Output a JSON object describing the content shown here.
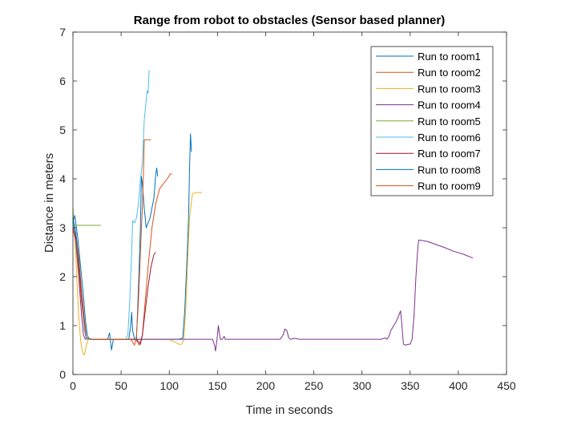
{
  "chart_data": {
    "type": "line",
    "title": "Range from robot to obstacles (Sensor based planner)",
    "xlabel": "Time in seconds",
    "ylabel": "Distance in meters",
    "xlim": [
      0,
      450
    ],
    "ylim": [
      0,
      7
    ],
    "xticks": [
      0,
      50,
      100,
      150,
      200,
      250,
      300,
      350,
      400,
      450
    ],
    "yticks": [
      0,
      1,
      2,
      3,
      4,
      5,
      6,
      7
    ],
    "grid": false,
    "legend_position": "top-right",
    "series": [
      {
        "name": "Run to room1",
        "color": "#0072BD",
        "points": [
          [
            0,
            3.1
          ],
          [
            2,
            3.25
          ],
          [
            5,
            2.8
          ],
          [
            8,
            2.2
          ],
          [
            11,
            1.6
          ],
          [
            13,
            1.1
          ],
          [
            15,
            0.8
          ],
          [
            17,
            0.72
          ],
          [
            25,
            0.72
          ],
          [
            35,
            0.72
          ],
          [
            45,
            0.72
          ],
          [
            55,
            0.72
          ],
          [
            62,
            0.72
          ],
          [
            68,
            0.72
          ],
          [
            75,
            0.72
          ],
          [
            85,
            0.72
          ],
          [
            95,
            0.72
          ],
          [
            105,
            0.72
          ],
          [
            110,
            0.72
          ],
          [
            114,
            0.75
          ],
          [
            116,
            1.3
          ],
          [
            118,
            2.2
          ],
          [
            120,
            3.2
          ],
          [
            121,
            4.2
          ],
          [
            122,
            4.92
          ],
          [
            123,
            4.55
          ]
        ]
      },
      {
        "name": "Run to room2",
        "color": "#D95319",
        "points": [
          [
            0,
            3.0
          ],
          [
            3,
            2.9
          ],
          [
            6,
            2.4
          ],
          [
            9,
            1.7
          ],
          [
            12,
            1.1
          ],
          [
            14,
            0.75
          ],
          [
            20,
            0.72
          ],
          [
            30,
            0.72
          ],
          [
            40,
            0.72
          ],
          [
            50,
            0.72
          ],
          [
            60,
            0.72
          ],
          [
            65,
            0.72
          ],
          [
            69,
            0.6
          ],
          [
            72,
            0.8
          ],
          [
            75,
            1.5
          ],
          [
            78,
            2.2
          ],
          [
            82,
            3.0
          ],
          [
            86,
            3.5
          ],
          [
            90,
            3.8
          ],
          [
            94,
            3.9
          ],
          [
            98,
            4.0
          ],
          [
            101,
            4.1
          ],
          [
            103,
            4.1
          ]
        ]
      },
      {
        "name": "Run to room3",
        "color": "#EDB120",
        "points": [
          [
            0,
            3.2
          ],
          [
            2,
            2.9
          ],
          [
            4,
            2.0
          ],
          [
            6,
            1.2
          ],
          [
            8,
            0.7
          ],
          [
            10,
            0.45
          ],
          [
            12,
            0.4
          ],
          [
            14,
            0.6
          ],
          [
            16,
            0.72
          ],
          [
            20,
            0.72
          ],
          [
            30,
            0.72
          ],
          [
            40,
            0.72
          ],
          [
            50,
            0.72
          ],
          [
            60,
            0.72
          ],
          [
            70,
            0.72
          ],
          [
            80,
            0.72
          ],
          [
            90,
            0.72
          ],
          [
            100,
            0.72
          ],
          [
            110,
            0.62
          ],
          [
            113,
            0.62
          ],
          [
            115,
            0.72
          ],
          [
            117,
            1.3
          ],
          [
            119,
            2.3
          ],
          [
            121,
            3.2
          ],
          [
            124,
            3.7
          ],
          [
            128,
            3.72
          ],
          [
            134,
            3.72
          ]
        ]
      },
      {
        "name": "Run to room4",
        "color": "#7E2F8E",
        "points": [
          [
            0,
            3.0
          ],
          [
            3,
            2.7
          ],
          [
            6,
            2.0
          ],
          [
            9,
            1.2
          ],
          [
            11,
            0.8
          ],
          [
            13,
            0.72
          ],
          [
            20,
            0.72
          ],
          [
            30,
            0.72
          ],
          [
            40,
            0.72
          ],
          [
            50,
            0.72
          ],
          [
            60,
            0.72
          ],
          [
            80,
            0.72
          ],
          [
            100,
            0.72
          ],
          [
            120,
            0.72
          ],
          [
            140,
            0.72
          ],
          [
            145,
            0.72
          ],
          [
            147,
            0.6
          ],
          [
            148,
            0.48
          ],
          [
            149,
            0.62
          ],
          [
            150,
            0.8
          ],
          [
            151,
            1.0
          ],
          [
            152,
            0.85
          ],
          [
            153,
            0.72
          ],
          [
            155,
            0.72
          ],
          [
            157,
            0.78
          ],
          [
            158,
            0.72
          ],
          [
            160,
            0.72
          ],
          [
            180,
            0.72
          ],
          [
            200,
            0.72
          ],
          [
            215,
            0.72
          ],
          [
            218,
            0.8
          ],
          [
            220,
            0.93
          ],
          [
            222,
            0.9
          ],
          [
            224,
            0.75
          ],
          [
            226,
            0.72
          ],
          [
            230,
            0.74
          ],
          [
            235,
            0.72
          ],
          [
            250,
            0.72
          ],
          [
            275,
            0.72
          ],
          [
            300,
            0.72
          ],
          [
            320,
            0.72
          ],
          [
            324,
            0.75
          ],
          [
            326,
            0.72
          ],
          [
            328,
            0.78
          ],
          [
            330,
            0.9
          ],
          [
            333,
            1.0
          ],
          [
            336,
            1.1
          ],
          [
            338,
            1.2
          ],
          [
            340,
            1.3
          ],
          [
            341,
            1.1
          ],
          [
            343,
            0.62
          ],
          [
            345,
            0.6
          ],
          [
            348,
            0.62
          ],
          [
            350,
            0.62
          ],
          [
            352,
            0.72
          ],
          [
            354,
            1.2
          ],
          [
            356,
            2.0
          ],
          [
            358,
            2.6
          ],
          [
            359,
            2.75
          ],
          [
            362,
            2.74
          ],
          [
            368,
            2.72
          ],
          [
            375,
            2.67
          ],
          [
            385,
            2.6
          ],
          [
            395,
            2.52
          ],
          [
            405,
            2.46
          ],
          [
            415,
            2.38
          ]
        ]
      },
      {
        "name": "Run to room5",
        "color": "#77AC30",
        "points": [
          [
            0,
            3.4
          ],
          [
            1,
            3.05
          ],
          [
            10,
            3.05
          ],
          [
            20,
            3.05
          ],
          [
            29,
            3.05
          ]
        ]
      },
      {
        "name": "Run to room6",
        "color": "#4DBEEE",
        "points": [
          [
            0,
            3.1
          ],
          [
            3,
            2.8
          ],
          [
            6,
            2.2
          ],
          [
            9,
            1.5
          ],
          [
            12,
            0.9
          ],
          [
            14,
            0.72
          ],
          [
            20,
            0.72
          ],
          [
            30,
            0.72
          ],
          [
            40,
            0.72
          ],
          [
            50,
            0.72
          ],
          [
            55,
            0.72
          ],
          [
            57,
            0.8
          ],
          [
            59,
            1.5
          ],
          [
            61,
            2.5
          ],
          [
            62,
            3.15
          ],
          [
            64,
            3.1
          ],
          [
            66,
            3.2
          ],
          [
            68,
            3.5
          ],
          [
            70,
            4.0
          ],
          [
            72,
            4.3
          ],
          [
            74,
            5.2
          ],
          [
            76,
            5.6
          ],
          [
            77,
            5.8
          ],
          [
            78,
            5.75
          ],
          [
            79,
            6.2
          ],
          [
            80,
            6.2
          ]
        ]
      },
      {
        "name": "Run to room7",
        "color": "#A2142F",
        "points": [
          [
            0,
            3.0
          ],
          [
            3,
            2.8
          ],
          [
            6,
            2.3
          ],
          [
            9,
            1.6
          ],
          [
            12,
            1.0
          ],
          [
            14,
            0.75
          ],
          [
            20,
            0.72
          ],
          [
            30,
            0.72
          ],
          [
            40,
            0.72
          ],
          [
            50,
            0.72
          ],
          [
            60,
            0.72
          ],
          [
            66,
            0.72
          ],
          [
            70,
            0.62
          ],
          [
            72,
            0.8
          ],
          [
            75,
            1.3
          ],
          [
            78,
            1.8
          ],
          [
            81,
            2.2
          ],
          [
            84,
            2.45
          ],
          [
            86,
            2.5
          ]
        ]
      },
      {
        "name": "Run to room8",
        "color": "#0072BD",
        "points": [
          [
            0,
            3.2
          ],
          [
            3,
            2.9
          ],
          [
            6,
            2.2
          ],
          [
            9,
            1.5
          ],
          [
            12,
            1.0
          ],
          [
            14,
            0.75
          ],
          [
            20,
            0.72
          ],
          [
            30,
            0.72
          ],
          [
            36,
            0.72
          ],
          [
            38,
            0.85
          ],
          [
            40,
            0.5
          ],
          [
            42,
            0.72
          ],
          [
            50,
            0.72
          ],
          [
            55,
            0.72
          ],
          [
            58,
            0.72
          ],
          [
            60,
            1.0
          ],
          [
            61,
            1.27
          ],
          [
            62,
            0.9
          ],
          [
            64,
            0.72
          ],
          [
            66,
            0.72
          ],
          [
            68,
            1.8
          ],
          [
            70,
            3.0
          ],
          [
            71,
            4.05
          ],
          [
            72,
            3.9
          ],
          [
            74,
            3.4
          ],
          [
            76,
            3.0
          ],
          [
            80,
            3.2
          ],
          [
            84,
            3.6
          ],
          [
            86,
            4.1
          ],
          [
            87,
            4.22
          ],
          [
            88,
            4.05
          ]
        ]
      },
      {
        "name": "Run to room9",
        "color": "#D95319",
        "points": [
          [
            0,
            3.0
          ],
          [
            3,
            2.7
          ],
          [
            6,
            2.1
          ],
          [
            9,
            1.5
          ],
          [
            12,
            1.0
          ],
          [
            14,
            0.75
          ],
          [
            20,
            0.72
          ],
          [
            30,
            0.72
          ],
          [
            40,
            0.72
          ],
          [
            50,
            0.72
          ],
          [
            60,
            0.72
          ],
          [
            64,
            0.6
          ],
          [
            66,
            0.8
          ],
          [
            68,
            1.5
          ],
          [
            70,
            2.5
          ],
          [
            72,
            3.4
          ],
          [
            73,
            4.0
          ],
          [
            74,
            4.8
          ],
          [
            78,
            4.8
          ],
          [
            81,
            4.8
          ]
        ]
      }
    ]
  }
}
